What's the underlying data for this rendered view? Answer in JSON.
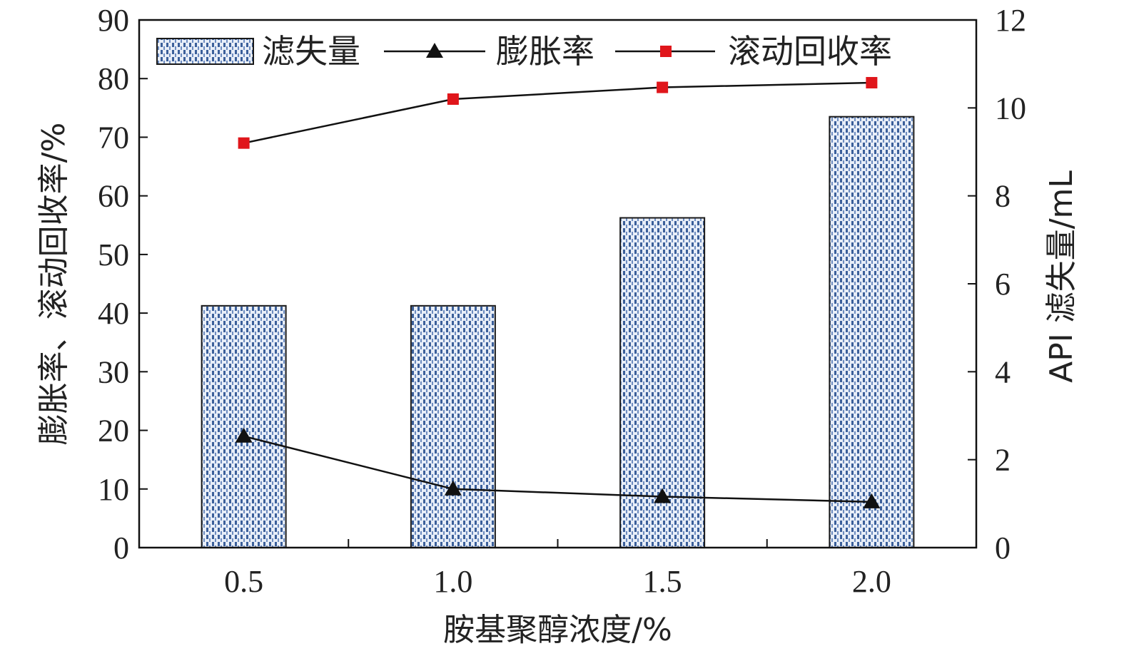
{
  "chart_data": {
    "type": "bar",
    "categories": [
      "0.5",
      "1.0",
      "1.5",
      "2.0"
    ],
    "xlabel": "胺基聚醇浓度/%",
    "ylabel_left": "膨胀率、滚动回收率/%",
    "ylabel_right": "API 滤失量/mL",
    "ylim_left": [
      0,
      90
    ],
    "ylim_right": [
      0,
      12
    ],
    "yticks_left": [
      0,
      10,
      20,
      30,
      40,
      50,
      60,
      70,
      80,
      90
    ],
    "yticks_right": [
      0,
      2,
      4,
      6,
      8,
      10,
      12
    ],
    "legend_position": "top",
    "grid": false,
    "series": [
      {
        "name": "滤失量",
        "type": "bar",
        "axis": "right",
        "values": [
          5.5,
          5.5,
          7.5,
          9.8
        ],
        "color": "#4a6fa5"
      },
      {
        "name": "膨胀率",
        "type": "line",
        "axis": "left",
        "marker": "triangle",
        "values": [
          19,
          10,
          8.7,
          7.8
        ],
        "color": "#111111"
      },
      {
        "name": "滚动回收率",
        "type": "line",
        "axis": "left",
        "marker": "square",
        "values": [
          69,
          76.5,
          78.5,
          79.3
        ],
        "color": "#e0161b"
      }
    ]
  }
}
